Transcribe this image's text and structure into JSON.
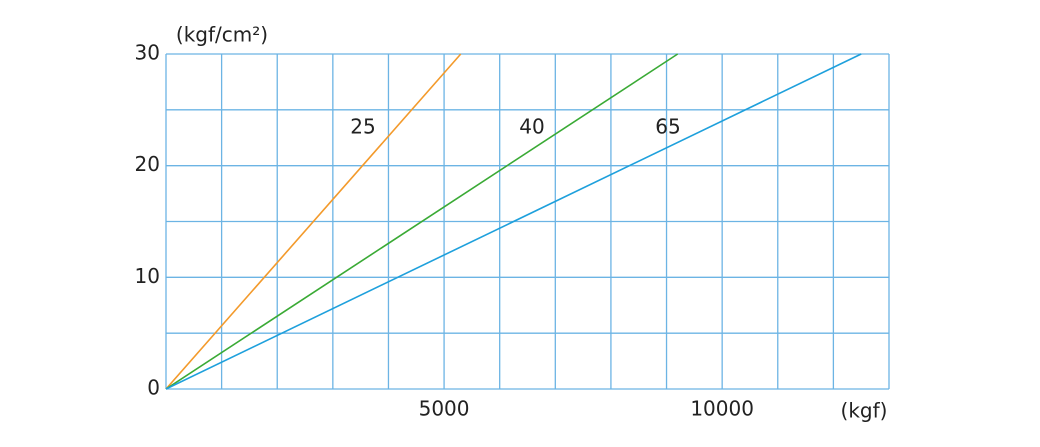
{
  "chart_data": {
    "type": "line",
    "y_label": "(kgf/cm²)",
    "x_label": "(kgf)",
    "xlim": [
      0,
      13000
    ],
    "ylim": [
      0,
      30
    ],
    "xticks": [
      5000,
      10000
    ],
    "yticks": [
      0,
      10,
      20,
      30
    ],
    "xgrid": [
      0,
      1000,
      2000,
      3000,
      4000,
      5000,
      6000,
      7000,
      8000,
      9000,
      10000,
      11000,
      12000,
      13000
    ],
    "ygrid": [
      0,
      5,
      10,
      15,
      20,
      25,
      30
    ],
    "grid": true,
    "series": [
      {
        "name": "25",
        "color": "#f39a2b",
        "x": [
          0,
          5300
        ],
        "values": [
          0,
          30
        ]
      },
      {
        "name": "40",
        "color": "#3aaa35",
        "x": [
          0,
          9200
        ],
        "values": [
          0,
          30
        ]
      },
      {
        "name": "65",
        "color": "#1ea0dc",
        "x": [
          0,
          12500
        ],
        "values": [
          0,
          30
        ]
      }
    ]
  }
}
